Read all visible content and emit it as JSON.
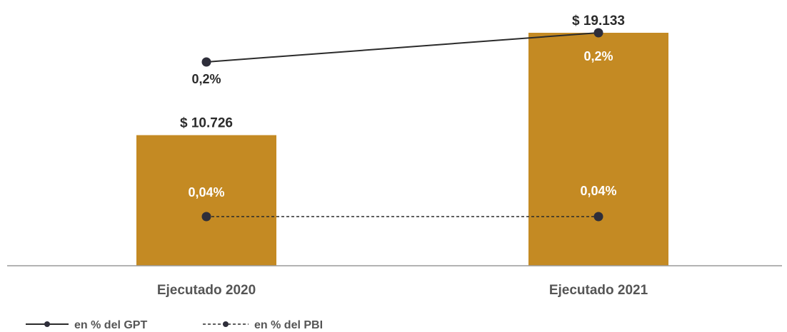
{
  "chart_data": {
    "type": "bar",
    "categories": [
      "Ejecutado 2020",
      "Ejecutado 2021"
    ],
    "bar_values": [
      10726,
      19133
    ],
    "bar_labels": [
      "$ 10.726",
      "$ 19.133"
    ],
    "series": [
      {
        "name": "en % del GPT",
        "values": [
          0.2,
          0.2
        ],
        "labels": [
          "0,2%",
          "0,2%"
        ],
        "line_style": "solid"
      },
      {
        "name": "en % del PBI",
        "values": [
          0.04,
          0.04
        ],
        "labels": [
          "0,04%",
          "0,04%"
        ],
        "line_style": "dashed"
      }
    ],
    "legend_position": "bottom-left",
    "grid": false,
    "colors": {
      "bar": "#C48A23",
      "line": "#2B2B2B",
      "marker": "#2E2E3A",
      "axis": "#9A9A9A",
      "label_dark": "#2B2B2B",
      "label_light": "#FFFFFF",
      "category_text": "#555555"
    }
  }
}
